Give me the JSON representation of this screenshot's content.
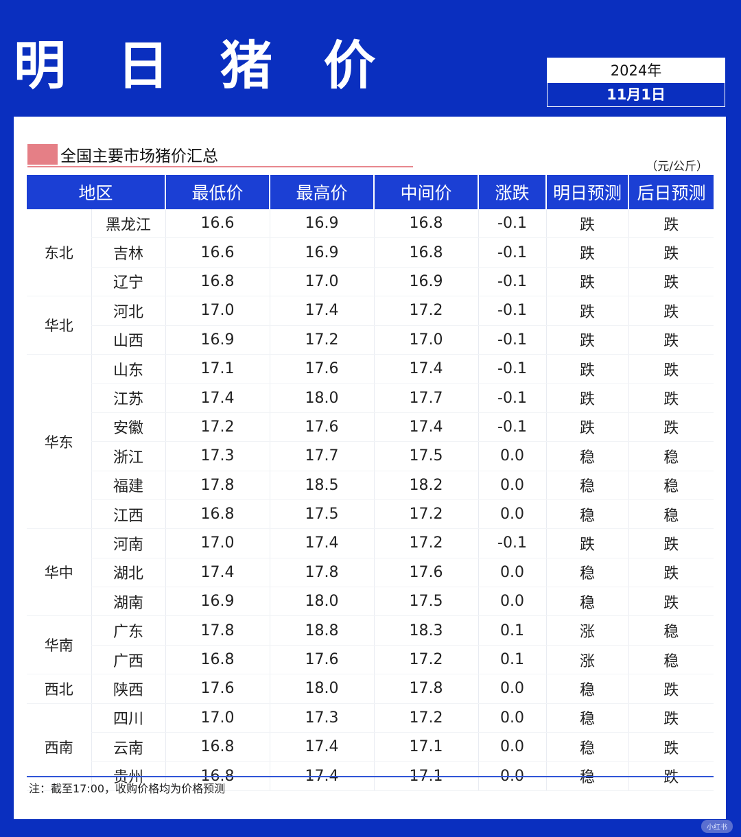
{
  "title": "明 日 猪 价",
  "date": {
    "year": "2024年",
    "day": "11月1日"
  },
  "section_title": "全国主要市场猪价汇总",
  "unit": "（元/公斤）",
  "headers": [
    "地区",
    "最低价",
    "最高价",
    "中间价",
    "涨跌",
    "明日预测",
    "后日预测"
  ],
  "groups": [
    {
      "name": "东北",
      "rows": [
        [
          "黑龙江",
          "16.6",
          "16.9",
          "16.8",
          "-0.1",
          "跌",
          "跌"
        ],
        [
          "吉林",
          "16.6",
          "16.9",
          "16.8",
          "-0.1",
          "跌",
          "跌"
        ],
        [
          "辽宁",
          "16.8",
          "17.0",
          "16.9",
          "-0.1",
          "跌",
          "跌"
        ]
      ]
    },
    {
      "name": "华北",
      "rows": [
        [
          "河北",
          "17.0",
          "17.4",
          "17.2",
          "-0.1",
          "跌",
          "跌"
        ],
        [
          "山西",
          "16.9",
          "17.2",
          "17.0",
          "-0.1",
          "跌",
          "跌"
        ]
      ]
    },
    {
      "name": "华东",
      "rows": [
        [
          "山东",
          "17.1",
          "17.6",
          "17.4",
          "-0.1",
          "跌",
          "跌"
        ],
        [
          "江苏",
          "17.4",
          "18.0",
          "17.7",
          "-0.1",
          "跌",
          "跌"
        ],
        [
          "安徽",
          "17.2",
          "17.6",
          "17.4",
          "-0.1",
          "跌",
          "跌"
        ],
        [
          "浙江",
          "17.3",
          "17.7",
          "17.5",
          "0.0",
          "稳",
          "稳"
        ],
        [
          "福建",
          "17.8",
          "18.5",
          "18.2",
          "0.0",
          "稳",
          "稳"
        ],
        [
          "江西",
          "16.8",
          "17.5",
          "17.2",
          "0.0",
          "稳",
          "稳"
        ]
      ]
    },
    {
      "name": "华中",
      "rows": [
        [
          "河南",
          "17.0",
          "17.4",
          "17.2",
          "-0.1",
          "跌",
          "跌"
        ],
        [
          "湖北",
          "17.4",
          "17.8",
          "17.6",
          "0.0",
          "稳",
          "跌"
        ],
        [
          "湖南",
          "16.9",
          "18.0",
          "17.5",
          "0.0",
          "稳",
          "跌"
        ]
      ]
    },
    {
      "name": "华南",
      "rows": [
        [
          "广东",
          "17.8",
          "18.8",
          "18.3",
          "0.1",
          "涨",
          "稳"
        ],
        [
          "广西",
          "16.8",
          "17.6",
          "17.2",
          "0.1",
          "涨",
          "稳"
        ]
      ]
    },
    {
      "name": "西北",
      "rows": [
        [
          "陕西",
          "17.6",
          "18.0",
          "17.8",
          "0.0",
          "稳",
          "跌"
        ]
      ]
    },
    {
      "name": "西南",
      "rows": [
        [
          "四川",
          "17.0",
          "17.3",
          "17.2",
          "0.0",
          "稳",
          "跌"
        ],
        [
          "云南",
          "16.8",
          "17.4",
          "17.1",
          "0.0",
          "稳",
          "跌"
        ],
        [
          "贵州",
          "16.8",
          "17.4",
          "17.1",
          "0.0",
          "稳",
          "跌"
        ]
      ]
    }
  ],
  "note": "注：截至17:00，收购价格均为价格预测",
  "watermark": "小红书",
  "colors": {
    "down": "#1ba58a",
    "up": "#e0303a",
    "flat": "#222222",
    "header": "#1b3fd4",
    "background": "#0a2fbf"
  }
}
